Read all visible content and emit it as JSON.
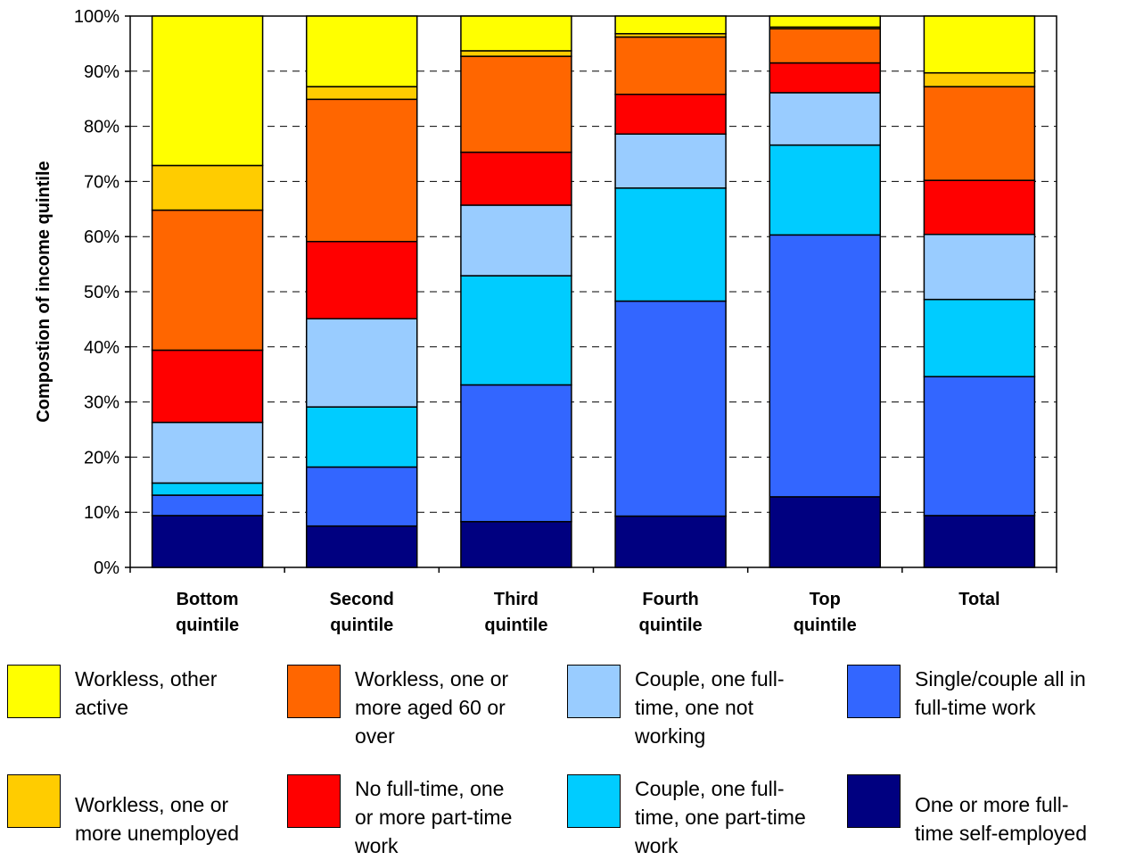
{
  "chart_data": {
    "type": "bar",
    "stacked": true,
    "categories": [
      [
        "Bottom",
        "quintile"
      ],
      [
        "Second",
        "quintile"
      ],
      [
        "Third",
        "quintile"
      ],
      [
        "Fourth",
        "quintile"
      ],
      [
        "Top",
        "quintile"
      ],
      [
        "Total"
      ]
    ],
    "ylabel": "Compostion of income quintile",
    "ylim": [
      0,
      100
    ],
    "yticks": [
      "0%",
      "10%",
      "20%",
      "30%",
      "40%",
      "50%",
      "60%",
      "70%",
      "80%",
      "90%",
      "100%"
    ],
    "grid": "horizontal dashed",
    "legend_position": "bottom",
    "series": [
      {
        "name": "One or more full-time self-employed",
        "color": "#000080",
        "values": [
          9.4,
          7.5,
          8.3,
          9.3,
          12.8,
          9.4
        ]
      },
      {
        "name": "Single/couple all in full-time work",
        "color": "#3366ff",
        "values": [
          3.7,
          10.7,
          24.8,
          39.0,
          47.5,
          25.2
        ]
      },
      {
        "name": "Couple, one full-time, one part-time work",
        "color": "#00ccff",
        "values": [
          2.2,
          10.9,
          19.8,
          20.5,
          16.3,
          14.0
        ]
      },
      {
        "name": "Couple, one full-time, one not working",
        "color": "#99ccff",
        "values": [
          11.0,
          16.0,
          12.8,
          9.8,
          9.5,
          11.8
        ]
      },
      {
        "name": "No full-time, one or more part-time work",
        "color": "#ff0000",
        "values": [
          13.1,
          14.0,
          9.6,
          7.2,
          5.4,
          9.8
        ]
      },
      {
        "name": "Workless, one or more aged 60 or over",
        "color": "#ff6600",
        "values": [
          25.4,
          25.8,
          17.4,
          10.4,
          6.2,
          17.0
        ]
      },
      {
        "name": "Workless, one or more unemployed",
        "color": "#ffcc00",
        "values": [
          8.1,
          2.3,
          1.0,
          0.6,
          0.3,
          2.5
        ]
      },
      {
        "name": "Workless, other active",
        "color": "#ffff00",
        "values": [
          27.1,
          12.8,
          6.3,
          3.2,
          2.0,
          10.3
        ]
      }
    ]
  },
  "legend": [
    {
      "lines": [
        "Workless, other",
        "active"
      ],
      "color": "#ffff00"
    },
    {
      "lines": [
        "Workless, one or",
        "more aged 60 or",
        "over"
      ],
      "color": "#ff6600"
    },
    {
      "lines": [
        "Couple, one full-",
        "time, one not",
        "working"
      ],
      "color": "#99ccff"
    },
    {
      "lines": [
        "Single/couple all in",
        "full-time work"
      ],
      "color": "#3366ff"
    },
    {
      "lines": [
        "Workless, one or",
        "more unemployed"
      ],
      "color": "#ffcc00"
    },
    {
      "lines": [
        "No full-time, one",
        "or more part-time",
        "work"
      ],
      "color": "#ff0000"
    },
    {
      "lines": [
        "Couple, one full-",
        "time, one part-time",
        "work"
      ],
      "color": "#00ccff"
    },
    {
      "lines": [
        "One or more full-",
        "time self-employed"
      ],
      "color": "#000080"
    }
  ]
}
